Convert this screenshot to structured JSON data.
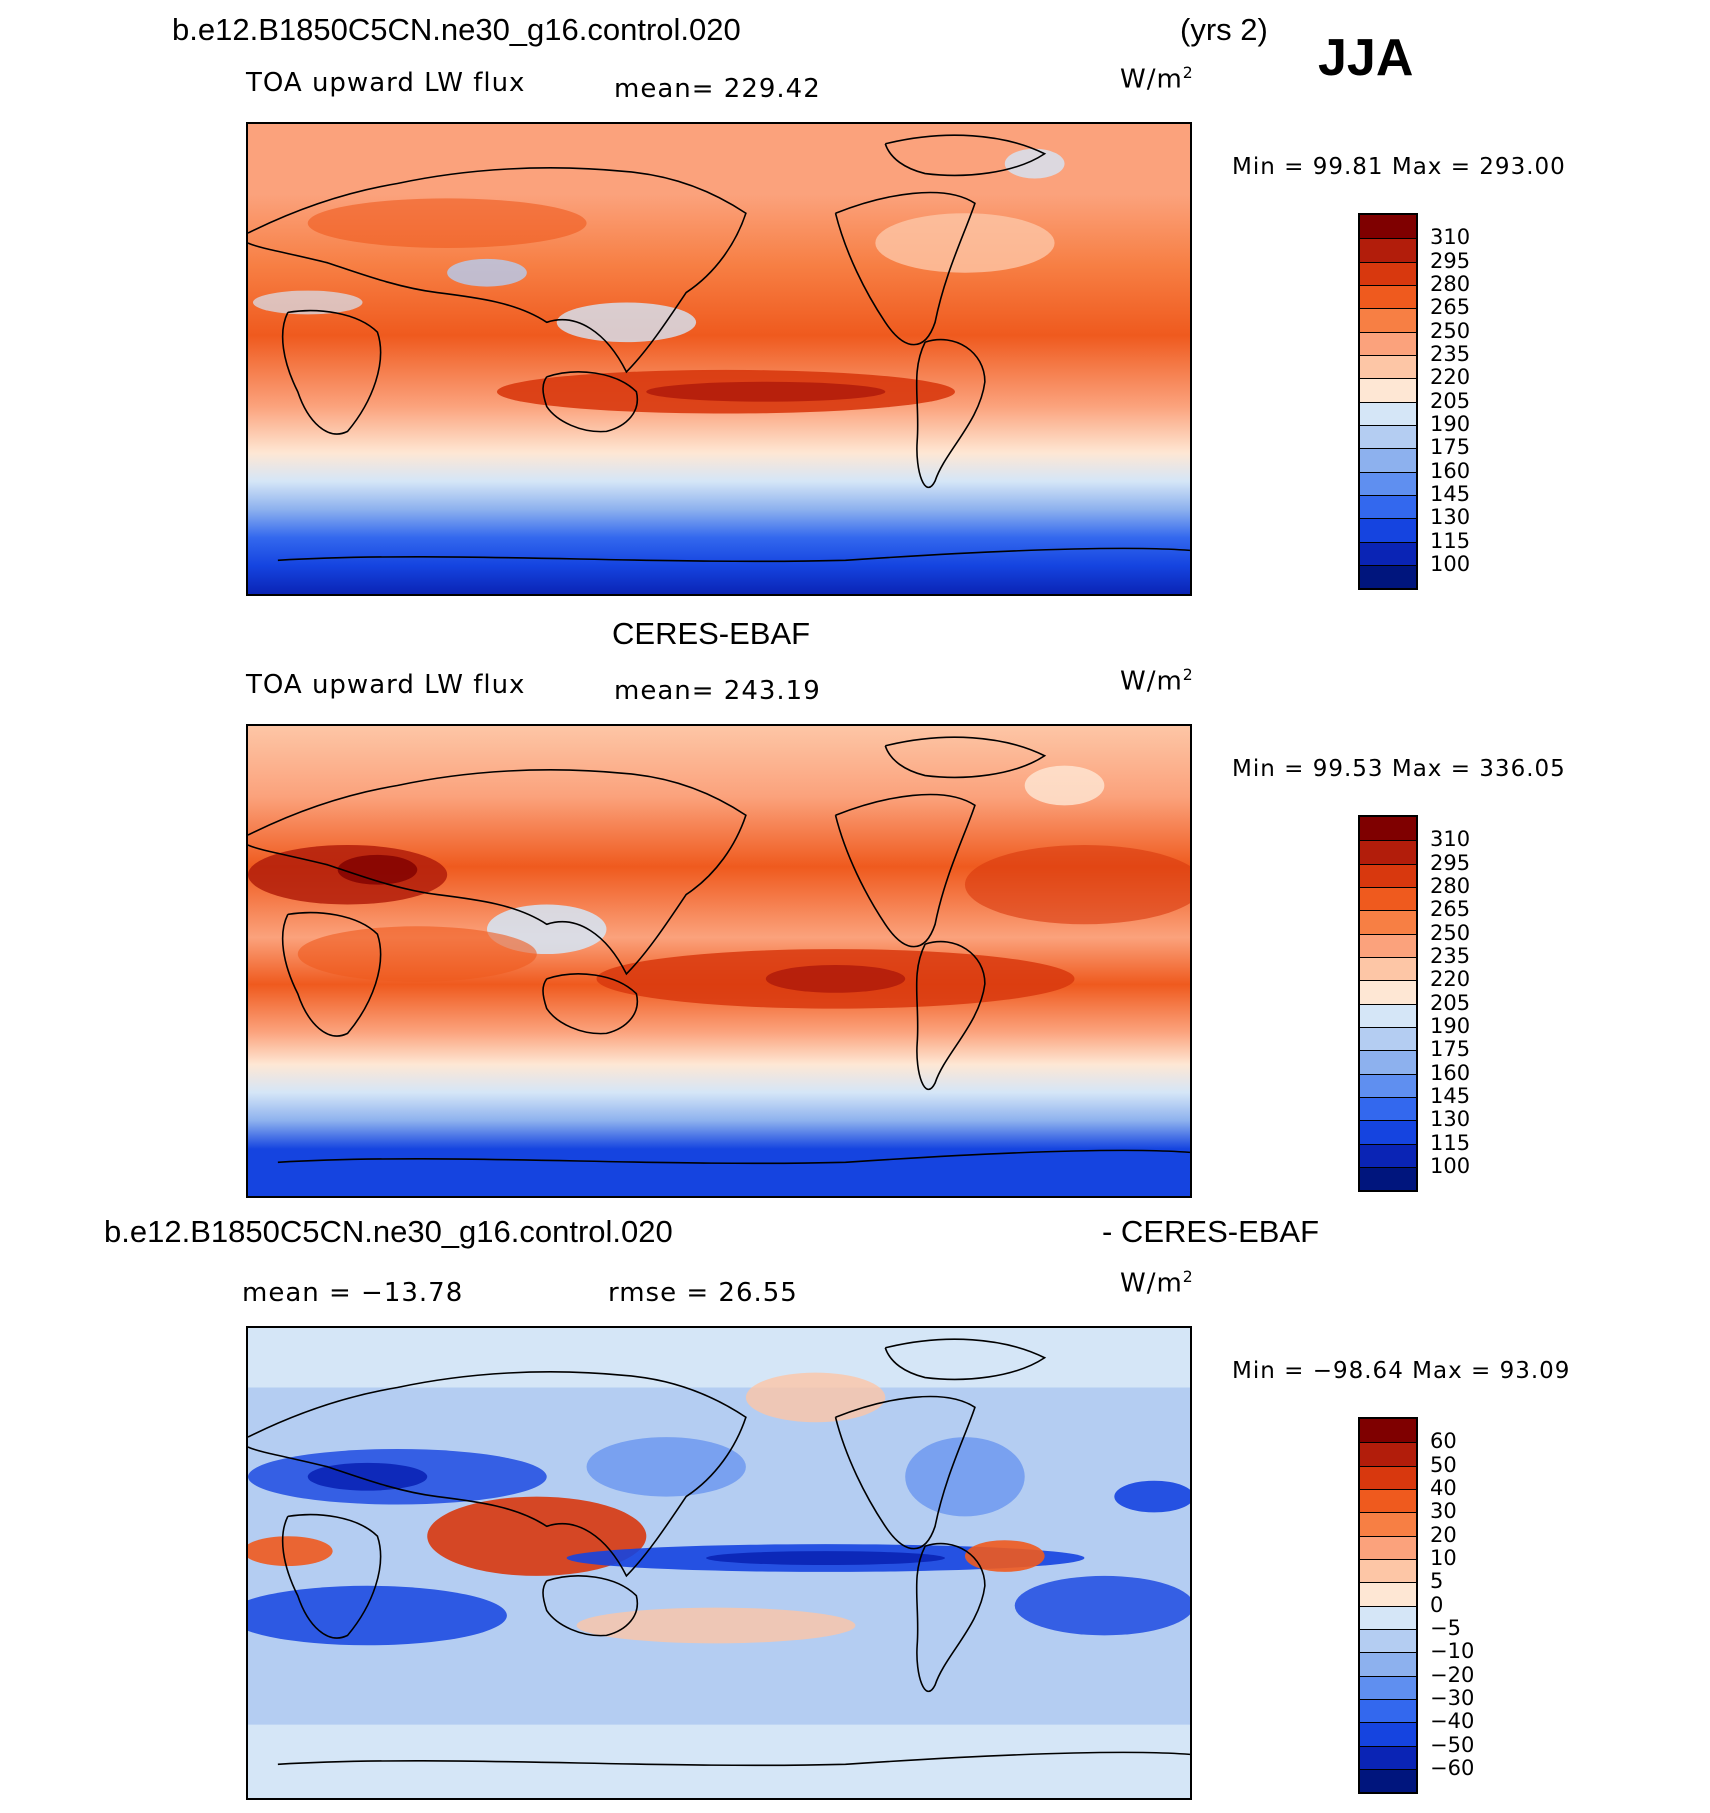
{
  "header": {
    "case_title": "b.e12.B1850C5CN.ne30_g16.control.020",
    "years": "(yrs 2)",
    "season": "JJA"
  },
  "panels": [
    {
      "id": "model",
      "top_title": "",
      "variable": "TOA upward LW flux",
      "stat": "mean=  229.42",
      "units": "W/m",
      "units_exp": "2",
      "minmax": "Min  =    99.81  Max  =  293.00",
      "colorbar": {
        "colors": [
          "#7f0000",
          "#b21d0b",
          "#d8380e",
          "#ef5a1e",
          "#f77f44",
          "#fba27c",
          "#fdc6a6",
          "#fee7d4",
          "#d5e6f7",
          "#b4cdf2",
          "#8db1ee",
          "#5f8ff0",
          "#3368ee",
          "#1544e0",
          "#0a24b5",
          "#00157d"
        ],
        "ticks": [
          "310",
          "295",
          "280",
          "265",
          "250",
          "235",
          "220",
          "205",
          "190",
          "175",
          "160",
          "145",
          "130",
          "115",
          "100"
        ]
      }
    },
    {
      "id": "obs",
      "top_title": "CERES-EBAF",
      "variable": "TOA upward LW flux",
      "stat": "mean=  243.19",
      "units": "W/m",
      "units_exp": "2",
      "minmax": "Min  =    99.53  Max  =  336.05",
      "colorbar": {
        "colors": [
          "#7f0000",
          "#b21d0b",
          "#d8380e",
          "#ef5a1e",
          "#f77f44",
          "#fba27c",
          "#fdc6a6",
          "#fee7d4",
          "#d5e6f7",
          "#b4cdf2",
          "#8db1ee",
          "#5f8ff0",
          "#3368ee",
          "#1544e0",
          "#0a24b5",
          "#00157d"
        ],
        "ticks": [
          "310",
          "295",
          "280",
          "265",
          "250",
          "235",
          "220",
          "205",
          "190",
          "175",
          "160",
          "145",
          "130",
          "115",
          "100"
        ]
      }
    },
    {
      "id": "diff",
      "top_title": "b.e12.B1850C5CN.ne30_g16.control.020",
      "top_title_right": "- CERES-EBAF",
      "stat_mean": "mean  =  −13.78",
      "stat_rmse": "rmse  =    26.55",
      "units": "W/m",
      "units_exp": "2",
      "minmax": "Min  = −98.64  Max  =    93.09",
      "colorbar": {
        "colors": [
          "#7f0000",
          "#b21d0b",
          "#d8380e",
          "#ef5a1e",
          "#f77f44",
          "#fba27c",
          "#fdc6a6",
          "#fee7d4",
          "#d5e6f7",
          "#b4cdf2",
          "#8db1ee",
          "#5f8ff0",
          "#3368ee",
          "#1544e0",
          "#0a24b5",
          "#00157d"
        ],
        "ticks": [
          "60",
          "50",
          "40",
          "30",
          "20",
          "10",
          "5",
          "0",
          "−5",
          "−10",
          "−20",
          "−30",
          "−40",
          "−50",
          "−60"
        ]
      }
    }
  ]
}
